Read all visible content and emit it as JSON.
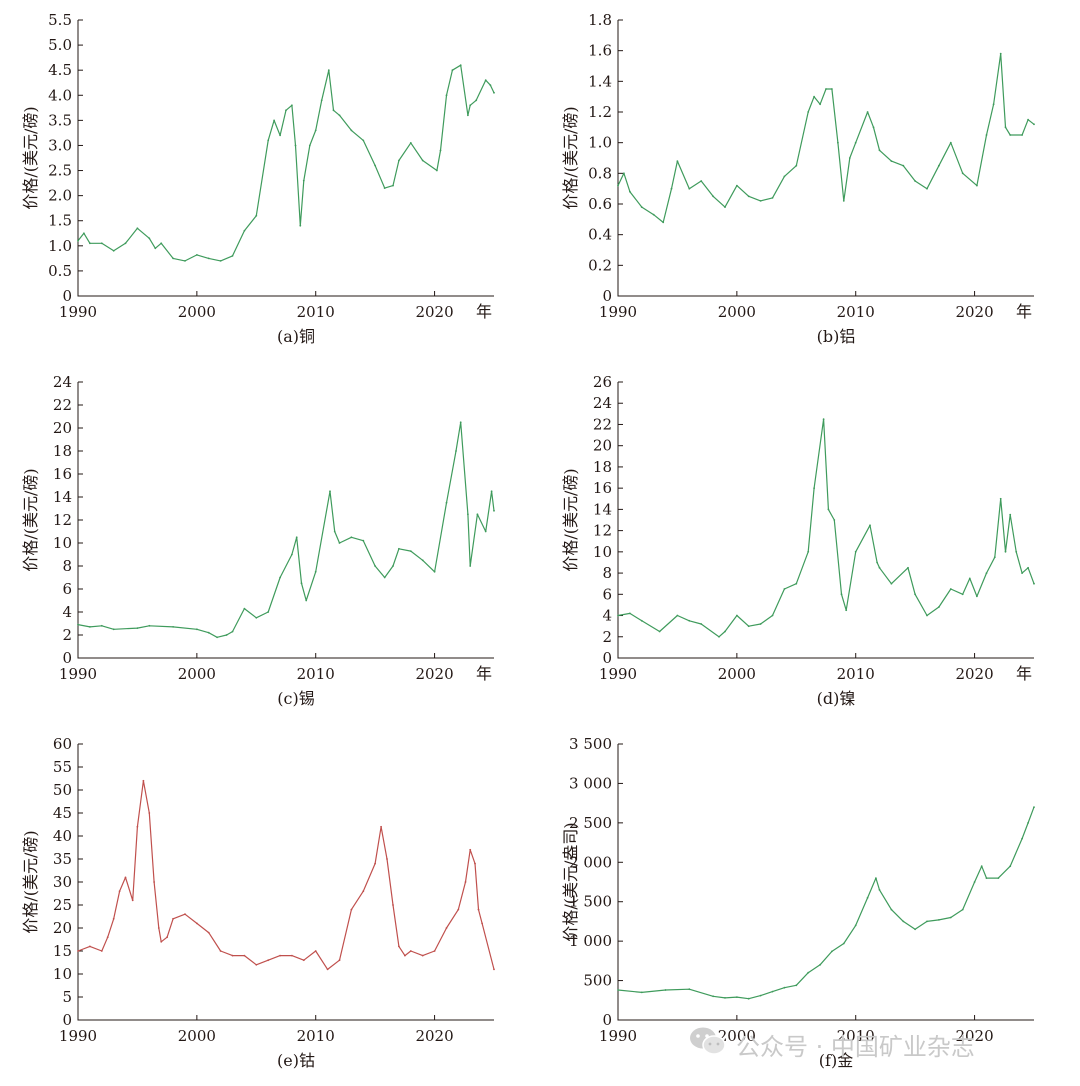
{
  "colors": {
    "green_series": "#3f9b5c",
    "red_series": "#c0504d",
    "axis": "#231815"
  },
  "watermark": {
    "icon": "wechat-icon",
    "text": "公众号 · 中国矿业杂志"
  },
  "chart_data": [
    {
      "id": "a",
      "type": "line",
      "caption": "(a)铜",
      "ylabel": "价格/(美元/磅)",
      "x_unit_label": "年",
      "xlim": [
        1990,
        2025
      ],
      "ylim": [
        0,
        5.5
      ],
      "xticks": [
        "1990",
        "2000",
        "2010",
        "2020"
      ],
      "yticks": [
        "0",
        "0.5",
        "1.0",
        "1.5",
        "2.0",
        "2.5",
        "3.0",
        "3.5",
        "4.0",
        "4.5",
        "5.0",
        "5.5"
      ],
      "series": [
        {
          "color": "green_series",
          "x": [
            1990,
            1990.5,
            1991,
            1992,
            1993,
            1994,
            1995,
            1996,
            1996.5,
            1997,
            1998,
            1999,
            2000,
            2001,
            2002,
            2003,
            2004,
            2005,
            2006,
            2006.5,
            2007,
            2007.5,
            2008,
            2008.3,
            2008.7,
            2009,
            2009.5,
            2010,
            2010.5,
            2011.1,
            2011.5,
            2012,
            2013,
            2014,
            2015,
            2015.8,
            2016.5,
            2017,
            2018,
            2019,
            2020.2,
            2020.5,
            2021,
            2021.5,
            2022.2,
            2022.8,
            2023,
            2023.5,
            2024.3,
            2024.7,
            2025
          ],
          "y": [
            1.1,
            1.25,
            1.05,
            1.05,
            0.9,
            1.05,
            1.35,
            1.15,
            0.95,
            1.05,
            0.75,
            0.7,
            0.82,
            0.75,
            0.7,
            0.8,
            1.3,
            1.6,
            3.1,
            3.5,
            3.2,
            3.7,
            3.8,
            3.0,
            1.4,
            2.3,
            3.0,
            3.3,
            3.9,
            4.5,
            3.7,
            3.6,
            3.3,
            3.1,
            2.6,
            2.15,
            2.2,
            2.7,
            3.05,
            2.7,
            2.5,
            2.9,
            4.0,
            4.5,
            4.6,
            3.6,
            3.8,
            3.9,
            4.3,
            4.2,
            4.05
          ]
        }
      ]
    },
    {
      "id": "b",
      "type": "line",
      "caption": "(b)铝",
      "ylabel": "价格/(美元/磅)",
      "x_unit_label": "年",
      "xlim": [
        1990,
        2025
      ],
      "ylim": [
        0,
        1.8
      ],
      "xticks": [
        "1990",
        "2000",
        "2010",
        "2020"
      ],
      "yticks": [
        "0",
        "0.2",
        "0.4",
        "0.6",
        "0.8",
        "1.0",
        "1.2",
        "1.4",
        "1.6",
        "1.8"
      ],
      "series": [
        {
          "color": "green_series",
          "x": [
            1990,
            1990.5,
            1991,
            1992,
            1993,
            1993.8,
            1994.5,
            1995,
            1996,
            1997,
            1998,
            1999,
            2000,
            2001,
            2002,
            2003,
            2004,
            2005,
            2006,
            2006.5,
            2007,
            2007.5,
            2008,
            2008.5,
            2009,
            2009.5,
            2010,
            2011,
            2011.5,
            2012,
            2013,
            2014,
            2015,
            2016,
            2017,
            2018,
            2019,
            2020.2,
            2021,
            2021.6,
            2022.2,
            2022.6,
            2023,
            2024,
            2024.5,
            2025
          ],
          "y": [
            0.72,
            0.8,
            0.68,
            0.58,
            0.53,
            0.48,
            0.7,
            0.88,
            0.7,
            0.75,
            0.65,
            0.58,
            0.72,
            0.65,
            0.62,
            0.64,
            0.78,
            0.85,
            1.2,
            1.3,
            1.25,
            1.35,
            1.35,
            1.0,
            0.62,
            0.9,
            1.0,
            1.2,
            1.1,
            0.95,
            0.88,
            0.85,
            0.75,
            0.7,
            0.85,
            1.0,
            0.8,
            0.72,
            1.05,
            1.25,
            1.58,
            1.1,
            1.05,
            1.05,
            1.15,
            1.12
          ]
        }
      ]
    },
    {
      "id": "c",
      "type": "line",
      "caption": "(c)锡",
      "ylabel": "价格/(美元/磅)",
      "x_unit_label": "年",
      "xlim": [
        1990,
        2025
      ],
      "ylim": [
        0,
        24
      ],
      "xticks": [
        "1990",
        "2000",
        "2010",
        "2020"
      ],
      "yticks": [
        "0",
        "2",
        "4",
        "6",
        "8",
        "10",
        "12",
        "14",
        "16",
        "18",
        "20",
        "22",
        "24"
      ],
      "series": [
        {
          "color": "green_series",
          "x": [
            1990,
            1991,
            1992,
            1993,
            1995,
            1996,
            1998,
            2000,
            2001,
            2001.7,
            2002.5,
            2003,
            2004,
            2005,
            2006,
            2007,
            2008,
            2008.4,
            2008.8,
            2009.2,
            2010,
            2011.2,
            2011.6,
            2012,
            2013,
            2014,
            2015,
            2015.8,
            2016.5,
            2017,
            2018,
            2019,
            2020,
            2021,
            2021.8,
            2022.2,
            2022.8,
            2023,
            2023.6,
            2024.3,
            2024.8,
            2025
          ],
          "y": [
            2.9,
            2.7,
            2.8,
            2.5,
            2.6,
            2.8,
            2.7,
            2.5,
            2.2,
            1.8,
            2.0,
            2.3,
            4.3,
            3.5,
            4.0,
            7.0,
            9.0,
            10.5,
            6.5,
            5.0,
            7.5,
            14.5,
            11.0,
            10.0,
            10.5,
            10.2,
            8.0,
            7.0,
            8.0,
            9.5,
            9.3,
            8.5,
            7.5,
            13.5,
            18.0,
            20.5,
            12.5,
            8.0,
            12.5,
            11.0,
            14.5,
            12.8
          ]
        }
      ]
    },
    {
      "id": "d",
      "type": "line",
      "caption": "(d)镍",
      "ylabel": "价格/(美元/磅)",
      "x_unit_label": "年",
      "xlim": [
        1990,
        2025
      ],
      "ylim": [
        0,
        26
      ],
      "xticks": [
        "1990",
        "2000",
        "2010",
        "2020"
      ],
      "yticks": [
        "0",
        "2",
        "4",
        "6",
        "8",
        "10",
        "12",
        "14",
        "16",
        "18",
        "20",
        "22",
        "24",
        "26"
      ],
      "series": [
        {
          "color": "green_series",
          "x": [
            1990,
            1991,
            1992,
            1993.5,
            1995,
            1996,
            1997,
            1998.5,
            1999,
            2000,
            2001,
            2002,
            2003,
            2004,
            2005,
            2006,
            2006.5,
            2007.3,
            2007.7,
            2008.2,
            2008.8,
            2009.2,
            2010,
            2011.2,
            2011.8,
            2012,
            2013,
            2014.4,
            2015,
            2016,
            2017,
            2018,
            2019,
            2019.6,
            2020.2,
            2021,
            2021.7,
            2022.2,
            2022.6,
            2023,
            2023.5,
            2024,
            2024.5,
            2025
          ],
          "y": [
            4.0,
            4.2,
            3.5,
            2.5,
            4.0,
            3.5,
            3.2,
            2.0,
            2.5,
            4.0,
            3.0,
            3.2,
            4.0,
            6.5,
            7.0,
            10.0,
            16.0,
            22.5,
            14.0,
            13.0,
            6.0,
            4.5,
            10.0,
            12.5,
            9.0,
            8.5,
            7.0,
            8.5,
            6.0,
            4.0,
            4.8,
            6.5,
            6.0,
            7.5,
            5.8,
            8.0,
            9.5,
            15.0,
            10.0,
            13.5,
            10.0,
            8.0,
            8.5,
            7.0
          ]
        }
      ]
    },
    {
      "id": "e",
      "type": "line",
      "caption": "(e)钴",
      "ylabel": "价格/(美元/磅)",
      "x_unit_label": "",
      "xlim": [
        1990,
        2025
      ],
      "ylim": [
        0,
        60
      ],
      "xticks": [
        "1990",
        "2000",
        "2010",
        "2020"
      ],
      "yticks": [
        "0",
        "5",
        "10",
        "15",
        "20",
        "25",
        "30",
        "35",
        "40",
        "45",
        "50",
        "55",
        "60"
      ],
      "series": [
        {
          "color": "red_series",
          "x": [
            1990,
            1991,
            1992,
            1992.5,
            1993,
            1993.5,
            1994,
            1994.6,
            1995,
            1995.5,
            1996,
            1996.4,
            1996.8,
            1997,
            1997.5,
            1998,
            1999,
            2000,
            2001,
            2002,
            2003,
            2004,
            2005,
            2006,
            2007,
            2008,
            2009,
            2010,
            2011,
            2012,
            2013,
            2014,
            2015,
            2015.5,
            2016,
            2016.5,
            2017,
            2017.5,
            2018,
            2019,
            2020,
            2021,
            2022,
            2022.6,
            2023,
            2023.4,
            2023.7,
            2024,
            2025
          ],
          "y": [
            15,
            16,
            15,
            18,
            22,
            28,
            31,
            26,
            42,
            52,
            45,
            30,
            20,
            17,
            18,
            22,
            23,
            21,
            19,
            15,
            14,
            14,
            12,
            13,
            14,
            14,
            13,
            15,
            11,
            13,
            24,
            28,
            34,
            42,
            35,
            25,
            16,
            14,
            15,
            14,
            15,
            20,
            24,
            30,
            37,
            34,
            24,
            21,
            11
          ]
        }
      ]
    },
    {
      "id": "f",
      "type": "line",
      "caption": "(f)金",
      "ylabel": "价格/(美元/盎司)",
      "x_unit_label": "",
      "xlim": [
        1990,
        2025
      ],
      "ylim": [
        0,
        3500
      ],
      "xticks": [
        "1990",
        "2000",
        "2010",
        "2020"
      ],
      "yticks": [
        "0",
        "500",
        "1 000",
        "1 500",
        "2 000",
        "2 500",
        "3 000",
        "3 500"
      ],
      "series": [
        {
          "color": "green_series",
          "x": [
            1990,
            1992,
            1994,
            1996,
            1998,
            1999,
            2000,
            2001,
            2002,
            2003,
            2004,
            2005,
            2006,
            2007,
            2008,
            2009,
            2010,
            2011,
            2011.7,
            2012,
            2013,
            2014,
            2015,
            2016,
            2017,
            2018,
            2019,
            2020,
            2020.6,
            2021,
            2022,
            2023,
            2024,
            2024.5,
            2025
          ],
          "y": [
            380,
            350,
            380,
            390,
            300,
            280,
            290,
            270,
            310,
            360,
            410,
            440,
            600,
            700,
            870,
            970,
            1200,
            1550,
            1800,
            1650,
            1400,
            1250,
            1150,
            1250,
            1270,
            1300,
            1400,
            1750,
            1950,
            1800,
            1800,
            1950,
            2300,
            2500,
            2700
          ]
        }
      ]
    }
  ]
}
